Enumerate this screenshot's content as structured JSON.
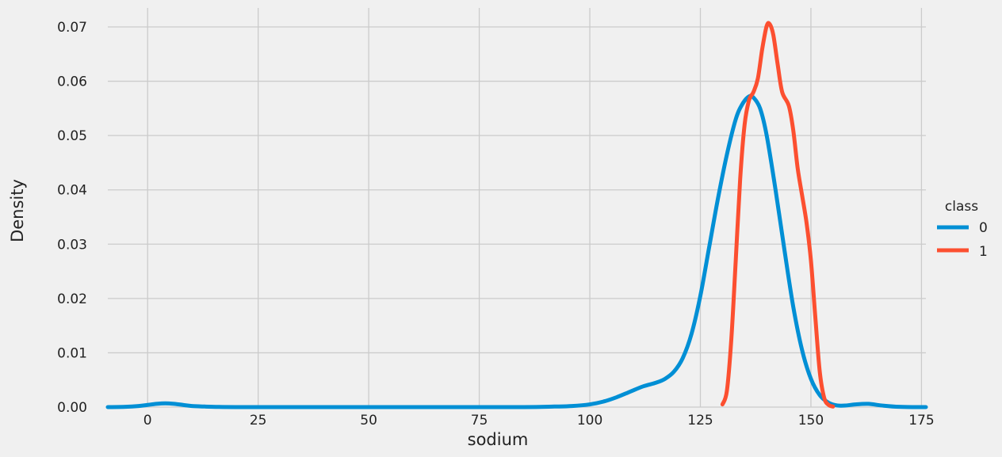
{
  "chart_data": {
    "type": "line",
    "xlabel": "sodium",
    "ylabel": "Density",
    "xlim": [
      -9,
      176
    ],
    "ylim": [
      0,
      0.0735
    ],
    "xticks": [
      0,
      25,
      50,
      75,
      100,
      125,
      150,
      175
    ],
    "yticks": [
      0.0,
      0.01,
      0.02,
      0.03,
      0.04,
      0.05,
      0.06,
      0.07
    ],
    "ytick_labels": [
      "0.00",
      "0.01",
      "0.02",
      "0.03",
      "0.04",
      "0.05",
      "0.06",
      "0.07"
    ],
    "grid": true,
    "legend": {
      "title": "class",
      "placement": "right"
    },
    "series": [
      {
        "name": "0",
        "color": "#008fd5",
        "x": [
          -9,
          -5,
          -2,
          0,
          2,
          4,
          6,
          8,
          10,
          13,
          16,
          20,
          30,
          50,
          70,
          85,
          92,
          96,
          100,
          103,
          106,
          109,
          112,
          115,
          117,
          119,
          121,
          123,
          125,
          127,
          129,
          131,
          133,
          134.5,
          136,
          137,
          138.5,
          140,
          142,
          144,
          146,
          148,
          150,
          152,
          154,
          156,
          158,
          160,
          163,
          166,
          170,
          176
        ],
        "y": [
          0,
          5e-05,
          0.0002,
          0.0004,
          0.0006,
          0.0007,
          0.0006,
          0.0004,
          0.0002,
          0.0001,
          3e-05,
          0,
          0,
          0,
          0,
          0,
          0.0001,
          0.0002,
          0.0005,
          0.001,
          0.0018,
          0.0028,
          0.0038,
          0.0045,
          0.0052,
          0.0065,
          0.009,
          0.0135,
          0.0205,
          0.0295,
          0.0385,
          0.0465,
          0.053,
          0.0558,
          0.0572,
          0.057,
          0.055,
          0.05,
          0.04,
          0.029,
          0.0185,
          0.0105,
          0.0052,
          0.0022,
          0.0008,
          0.0003,
          0.0003,
          0.0005,
          0.0006,
          0.0003,
          5e-05,
          0
        ]
      },
      {
        "name": "1",
        "color": "#fc4f30",
        "x": [
          130,
          131,
          132,
          133,
          134,
          135,
          136,
          137,
          138,
          139,
          140,
          140.7,
          141.5,
          142.5,
          143.5,
          145,
          146,
          147,
          148,
          149,
          150,
          151,
          152,
          153,
          154,
          155
        ],
        "y": [
          0.0005,
          0.003,
          0.0125,
          0.027,
          0.042,
          0.052,
          0.0565,
          0.058,
          0.0605,
          0.066,
          0.0702,
          0.0705,
          0.0685,
          0.063,
          0.058,
          0.0555,
          0.051,
          0.044,
          0.039,
          0.034,
          0.027,
          0.0165,
          0.0065,
          0.0017,
          0.0004,
          0.0001
        ]
      }
    ]
  }
}
